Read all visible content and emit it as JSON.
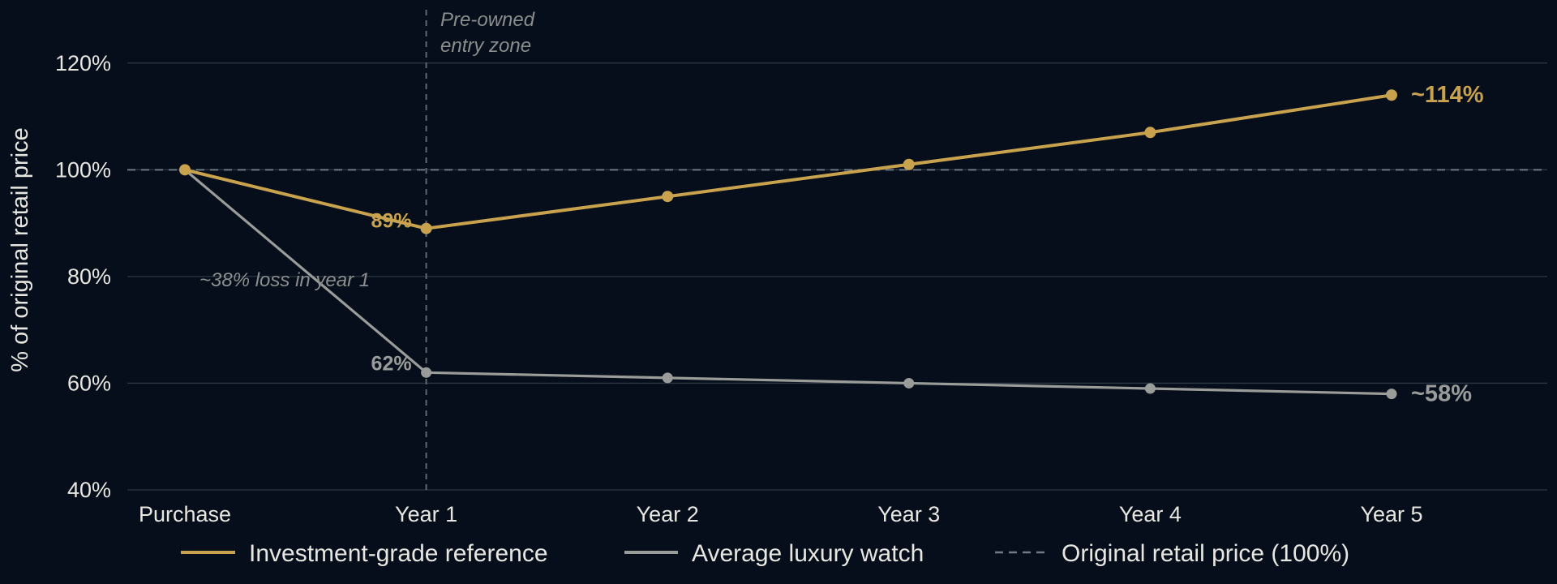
{
  "chart_data": {
    "type": "line",
    "categories": [
      "Purchase",
      "Year 1",
      "Year 2",
      "Year 3",
      "Year 4",
      "Year 5"
    ],
    "ylabel": "% of original retail price",
    "ylim": [
      40,
      130
    ],
    "yticks": [
      40,
      60,
      80,
      100,
      120
    ],
    "ytick_suffix": "%",
    "grid": true,
    "series": [
      {
        "name": "Investment-grade reference",
        "values": [
          100,
          89,
          95,
          101,
          107,
          114
        ],
        "color": "#c9a24e"
      },
      {
        "name": "Average luxury watch",
        "values": [
          100,
          62,
          61,
          60,
          59,
          58
        ],
        "color": "#9a9c99"
      }
    ],
    "reference_line": {
      "name": "Original retail price (100%)",
      "value": 100,
      "color": "#6f7a86"
    },
    "vertical_marker": {
      "category": "Year 1",
      "label_lines": [
        "Pre-owned",
        "entry zone"
      ]
    },
    "annotations": {
      "loss_note": "~38% loss in year 1",
      "gold_year1_label": "89%",
      "gray_year1_label": "62%",
      "gold_end_label": "~114%",
      "gray_end_label": "~58%"
    },
    "legend_placement": "bottom"
  }
}
